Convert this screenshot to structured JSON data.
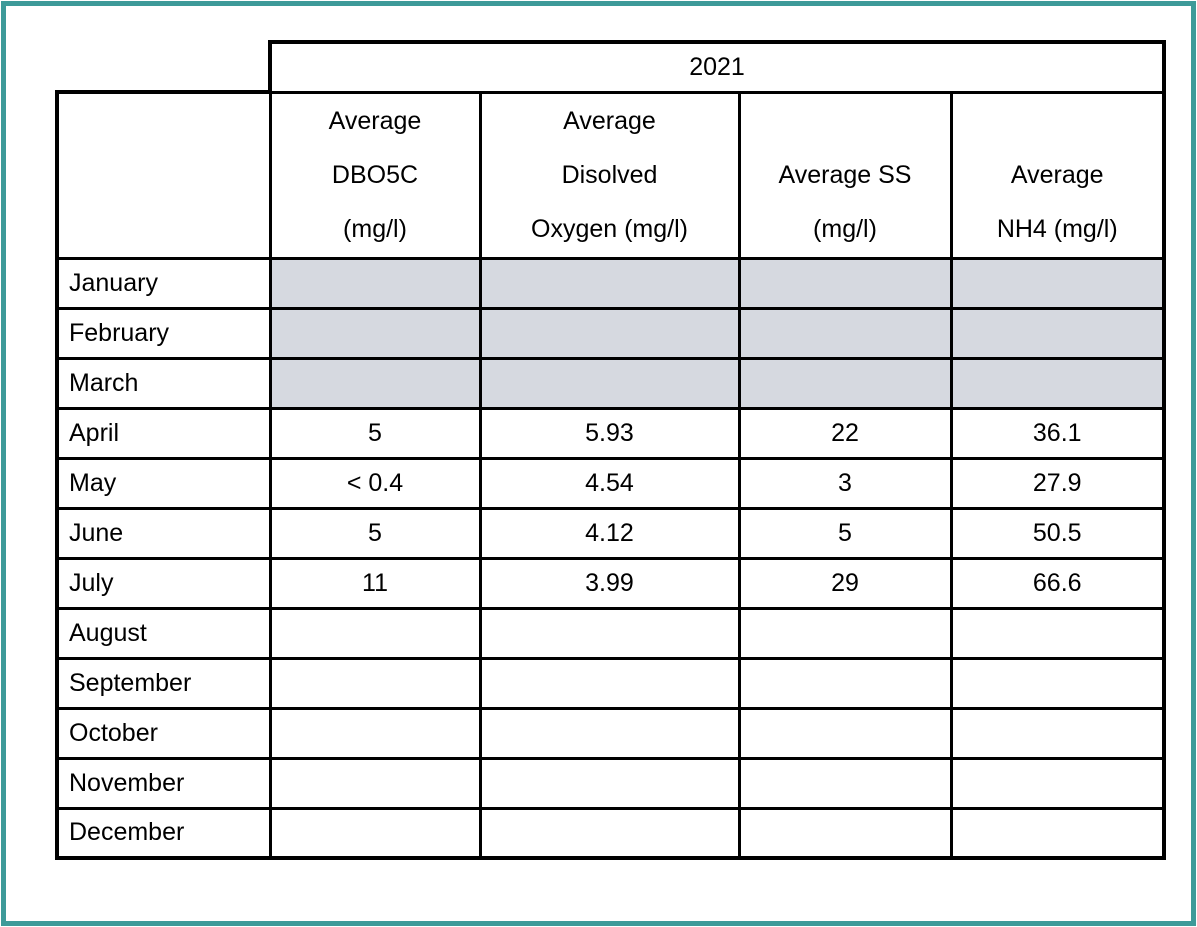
{
  "document": {
    "frame_color": "#3D9A99",
    "background": "#FFFFFF"
  },
  "table": {
    "year": "2021",
    "column_headers": [
      {
        "id": "avg-dbo5c",
        "label": "Average DBO5C (mg/l)",
        "lines": [
          "Average",
          "DBO5C",
          "(mg/l)"
        ]
      },
      {
        "id": "avg-disolved-oxygen",
        "label": "Average Disolved Oxygen (mg/l)",
        "lines": [
          "Average",
          "Disolved",
          "Oxygen (mg/l)"
        ]
      },
      {
        "id": "avg-ss",
        "label": "Average SS (mg/l)",
        "lines": [
          "Average SS",
          "(mg/l)"
        ]
      },
      {
        "id": "avg-nh4",
        "label": "Average NH4 (mg/l)",
        "lines": [
          "Average",
          "NH4 (mg/l)"
        ]
      }
    ],
    "rows": [
      {
        "month": "January",
        "shaded": true,
        "values": [
          "",
          "",
          "",
          ""
        ]
      },
      {
        "month": "February",
        "shaded": true,
        "values": [
          "",
          "",
          "",
          ""
        ]
      },
      {
        "month": "March",
        "shaded": true,
        "values": [
          "",
          "",
          "",
          ""
        ]
      },
      {
        "month": "April",
        "shaded": false,
        "values": [
          "5",
          "5.93",
          "22",
          "36.1"
        ]
      },
      {
        "month": "May",
        "shaded": false,
        "values": [
          "< 0.4",
          "4.54",
          "3",
          "27.9"
        ]
      },
      {
        "month": "June",
        "shaded": false,
        "values": [
          "5",
          "4.12",
          "5",
          "50.5"
        ]
      },
      {
        "month": "July",
        "shaded": false,
        "values": [
          "11",
          "3.99",
          "29",
          "66.6"
        ]
      },
      {
        "month": "August",
        "shaded": false,
        "values": [
          "",
          "",
          "",
          ""
        ]
      },
      {
        "month": "September",
        "shaded": false,
        "values": [
          "",
          "",
          "",
          ""
        ]
      },
      {
        "month": "October",
        "shaded": false,
        "values": [
          "",
          "",
          "",
          ""
        ]
      },
      {
        "month": "November",
        "shaded": false,
        "values": [
          "",
          "",
          "",
          ""
        ]
      },
      {
        "month": "December",
        "shaded": false,
        "values": [
          "",
          "",
          "",
          ""
        ]
      }
    ],
    "colors": {
      "shaded_cell": "#D6D9E0",
      "grid_line": "#000000",
      "text": "#000000"
    }
  },
  "chart_data": {
    "type": "table",
    "title": "2021",
    "categories": [
      "January",
      "February",
      "March",
      "April",
      "May",
      "June",
      "July",
      "August",
      "September",
      "October",
      "November",
      "December"
    ],
    "series": [
      {
        "name": "Average DBO5C (mg/l)",
        "values": [
          null,
          null,
          null,
          "5",
          "< 0.4",
          "5",
          "11",
          null,
          null,
          null,
          null,
          null
        ]
      },
      {
        "name": "Average Disolved Oxygen (mg/l)",
        "values": [
          null,
          null,
          null,
          5.93,
          4.54,
          4.12,
          3.99,
          null,
          null,
          null,
          null,
          null
        ]
      },
      {
        "name": "Average SS (mg/l)",
        "values": [
          null,
          null,
          null,
          22,
          3,
          5,
          29,
          null,
          null,
          null,
          null,
          null
        ]
      },
      {
        "name": "Average NH4 (mg/l)",
        "values": [
          null,
          null,
          null,
          36.1,
          27.9,
          50.5,
          66.6,
          null,
          null,
          null,
          null,
          null
        ]
      }
    ]
  }
}
